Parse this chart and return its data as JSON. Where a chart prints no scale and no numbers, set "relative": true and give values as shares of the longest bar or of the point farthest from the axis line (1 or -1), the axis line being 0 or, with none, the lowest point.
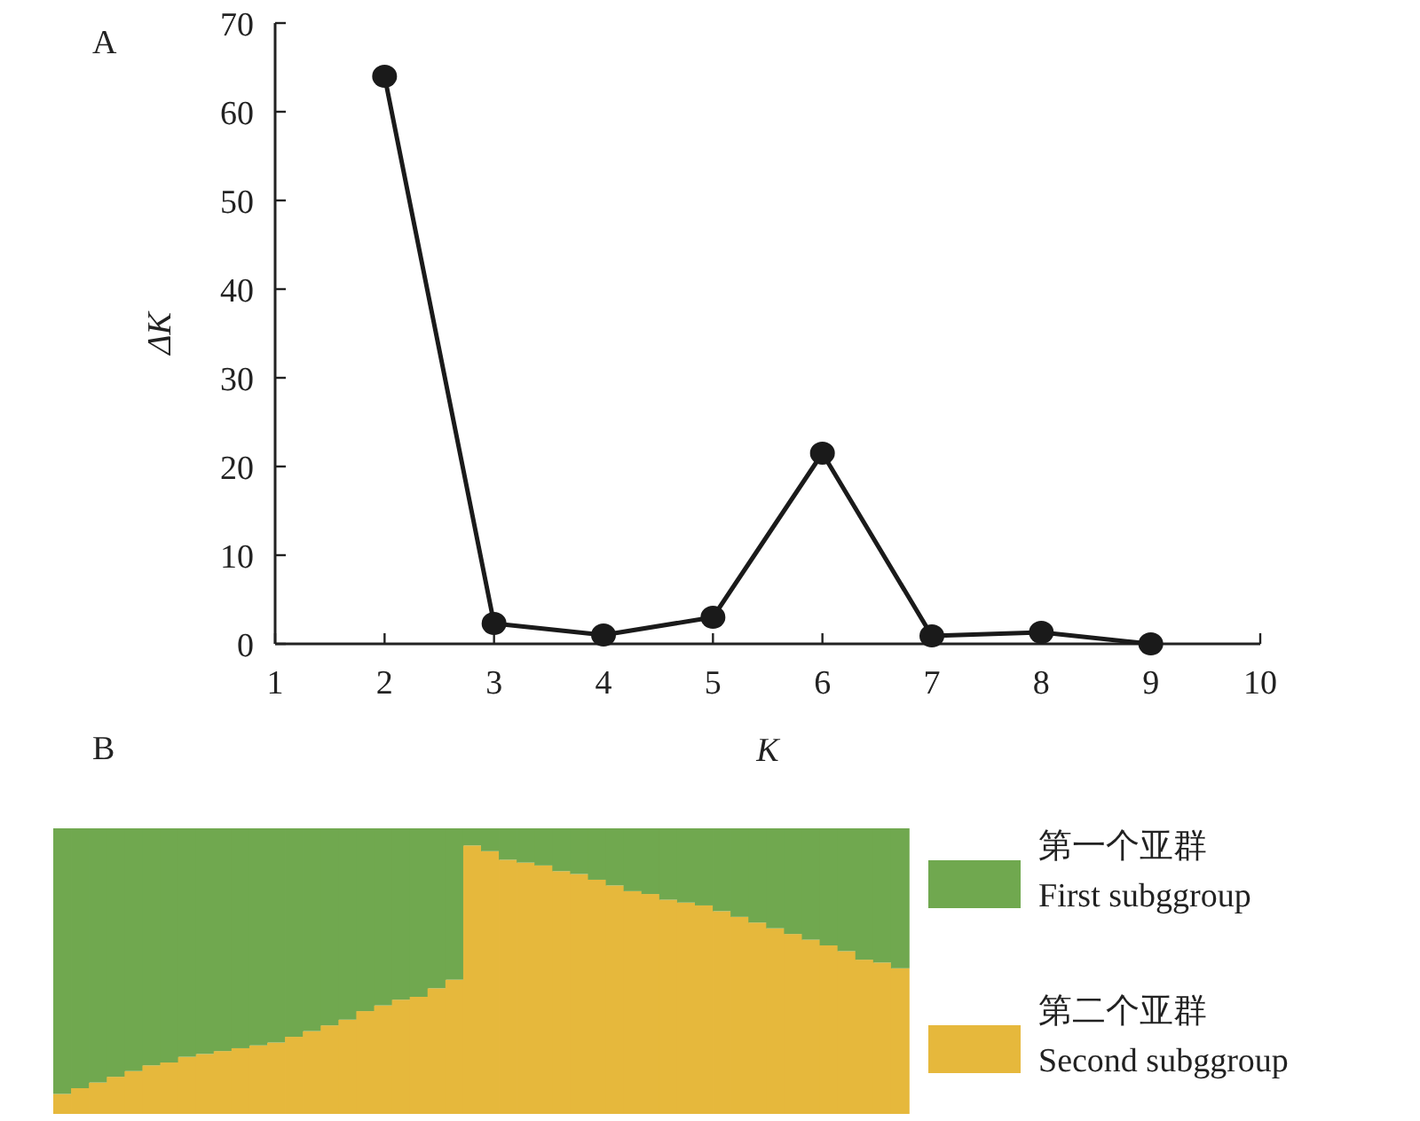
{
  "chart_data": [
    {
      "type": "line",
      "annotations": [
        "A"
      ],
      "xlabel": "K",
      "ylabel": "ΔK",
      "x": [
        2,
        3,
        4,
        5,
        6,
        7,
        8,
        9
      ],
      "values": [
        64,
        2.3,
        1.0,
        3.0,
        21.5,
        0.9,
        1.3,
        0
      ],
      "color": "#1a1a1a",
      "marker": "circle",
      "line_style": "solid",
      "xlim": [
        1,
        10
      ],
      "xticks": [
        1,
        2,
        3,
        4,
        5,
        6,
        7,
        8,
        9,
        10
      ],
      "ylim": [
        0,
        70
      ],
      "yticks": [
        0,
        10,
        20,
        30,
        40,
        50,
        60,
        70
      ],
      "grid": false
    },
    {
      "type": "bar",
      "annotations": [
        "B"
      ],
      "stacked": true,
      "relative": true,
      "legend": "right",
      "categories": [
        null,
        null,
        null,
        null,
        null,
        null,
        null,
        null,
        null,
        null,
        null,
        null,
        null,
        null,
        null,
        null,
        null,
        null,
        null,
        null,
        null,
        null,
        null,
        null,
        null,
        null,
        null,
        null,
        null,
        null,
        null,
        null,
        null,
        null,
        null,
        null,
        null,
        null,
        null,
        null,
        null,
        null,
        null,
        null,
        null,
        null,
        null,
        null
      ],
      "series": [
        {
          "name": "第二个亚群 Second subggroup",
          "color": "#e6b83c",
          "values": [
            0.07,
            0.09,
            0.11,
            0.13,
            0.15,
            0.17,
            0.18,
            0.2,
            0.21,
            0.22,
            0.23,
            0.24,
            0.25,
            0.27,
            0.29,
            0.31,
            0.33,
            0.36,
            0.38,
            0.4,
            0.41,
            0.44,
            0.47,
            0.94,
            0.92,
            0.89,
            0.88,
            0.87,
            0.85,
            0.84,
            0.82,
            0.8,
            0.78,
            0.77,
            0.75,
            0.74,
            0.73,
            0.71,
            0.69,
            0.67,
            0.65,
            0.63,
            0.61,
            0.59,
            0.57,
            0.54,
            0.53,
            0.51
          ]
        },
        {
          "name": "第一个亚群 First subggroup",
          "color": "#70a84f",
          "values": [
            0.93,
            0.91,
            0.89,
            0.87,
            0.85,
            0.83,
            0.82,
            0.8,
            0.79,
            0.78,
            0.77,
            0.76,
            0.75,
            0.73,
            0.71,
            0.69,
            0.67,
            0.64,
            0.62,
            0.6,
            0.59,
            0.56,
            0.53,
            0.06,
            0.08,
            0.11,
            0.12,
            0.13,
            0.15,
            0.16,
            0.18,
            0.2,
            0.22,
            0.23,
            0.25,
            0.26,
            0.27,
            0.29,
            0.31,
            0.33,
            0.35,
            0.37,
            0.39,
            0.41,
            0.43,
            0.46,
            0.47,
            0.49
          ]
        }
      ]
    }
  ]
}
